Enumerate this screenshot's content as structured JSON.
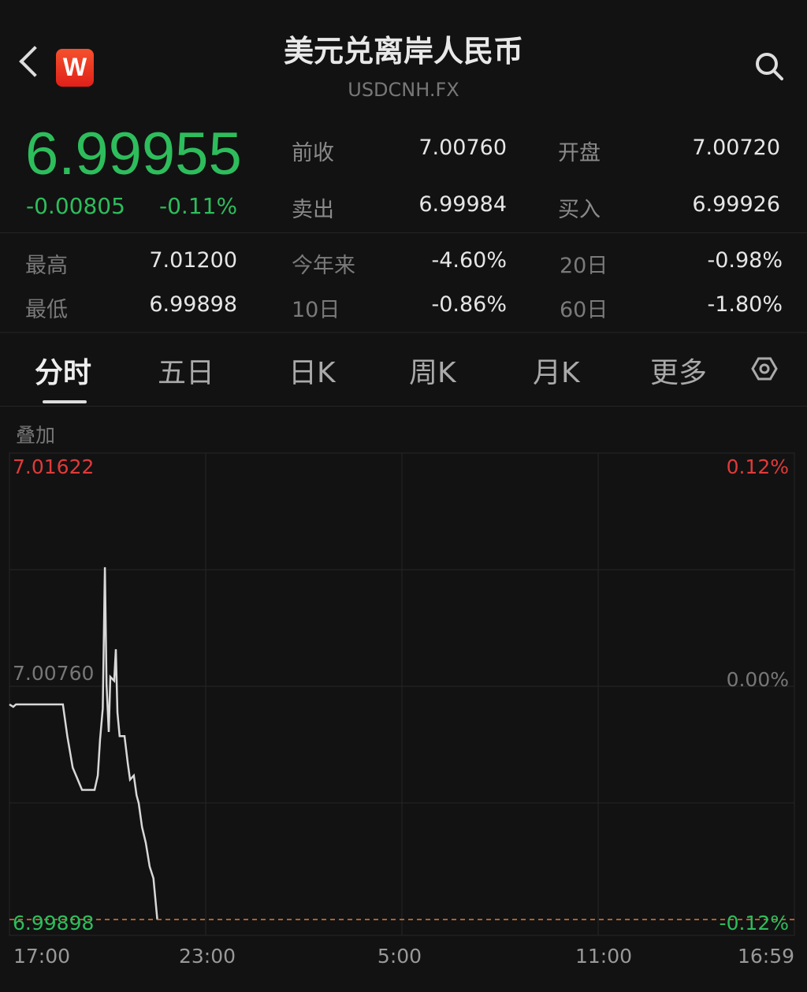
{
  "header": {
    "title": "美元兑离岸人民币",
    "symbol": "USDCNH.FX",
    "logo_letter": "W",
    "back_icon": "chevron-left-icon",
    "search_icon": "search-icon"
  },
  "quote": {
    "price": "6.99955",
    "change": "-0.00805",
    "change_pct": "-0.11%",
    "color": "#2ebd5c"
  },
  "stats": [
    {
      "label": "前收",
      "value": "7.00760"
    },
    {
      "label": "开盘",
      "value": "7.00720"
    },
    {
      "label": "卖出",
      "value": "6.99984"
    },
    {
      "label": "买入",
      "value": "6.99926"
    },
    {
      "label": "最高",
      "value": "7.01200"
    },
    {
      "label": "今年来",
      "value": "-4.60%"
    },
    {
      "label": "20日",
      "value": "-0.98%"
    },
    {
      "label": "最低",
      "value": "6.99898"
    },
    {
      "label": "10日",
      "value": "-0.86%"
    },
    {
      "label": "60日",
      "value": "-1.80%"
    }
  ],
  "tabs": [
    {
      "label": "分时",
      "active": true
    },
    {
      "label": "五日"
    },
    {
      "label": "日K"
    },
    {
      "label": "周K"
    },
    {
      "label": "月K"
    },
    {
      "label": "更多"
    }
  ],
  "overlay_label": "叠加",
  "chart_data": {
    "type": "line",
    "y_left_ticks": [
      "7.01622",
      "7.00760",
      "6.99898"
    ],
    "y_right_ticks": [
      "0.12%",
      "0.00%",
      "-0.12%"
    ],
    "x_ticks": [
      "17:00",
      "23:00",
      "5:00",
      "11:00",
      "16:59"
    ],
    "ylim": [
      6.99898,
      7.01622
    ],
    "prev_close": 7.0076,
    "low_line": 6.99898,
    "colors": {
      "up": "#e03a3a",
      "down": "#2ebd5c",
      "line": "#d8d8d8",
      "low_line": "#e07a3a"
    },
    "grid": true,
    "points": [
      [
        "17:00",
        7.00693
      ],
      [
        "17:07",
        7.00684
      ],
      [
        "17:12",
        7.00693
      ],
      [
        "18:38",
        7.00693
      ],
      [
        "18:46",
        7.00576
      ],
      [
        "18:56",
        7.00459
      ],
      [
        "19:04",
        7.00421
      ],
      [
        "19:13",
        7.00377
      ],
      [
        "19:36",
        7.00377
      ],
      [
        "19:42",
        7.0043
      ],
      [
        "19:46",
        7.00561
      ],
      [
        "19:51",
        7.00678
      ],
      [
        "19:55",
        7.012
      ],
      [
        "19:58",
        7.00766
      ],
      [
        "20:02",
        7.00591
      ],
      [
        "20:05",
        7.00795
      ],
      [
        "20:12",
        7.0078
      ],
      [
        "20:15",
        7.00897
      ],
      [
        "20:18",
        7.00664
      ],
      [
        "20:22",
        7.00576
      ],
      [
        "20:31",
        7.00576
      ],
      [
        "20:37",
        7.00474
      ],
      [
        "20:41",
        7.00415
      ],
      [
        "20:48",
        7.0043
      ],
      [
        "20:53",
        7.00357
      ],
      [
        "20:57",
        7.00328
      ],
      [
        "21:03",
        7.0024
      ],
      [
        "21:10",
        7.00181
      ],
      [
        "21:17",
        7.00094
      ],
      [
        "21:24",
        7.0005
      ],
      [
        "21:31",
        6.99898
      ]
    ]
  }
}
